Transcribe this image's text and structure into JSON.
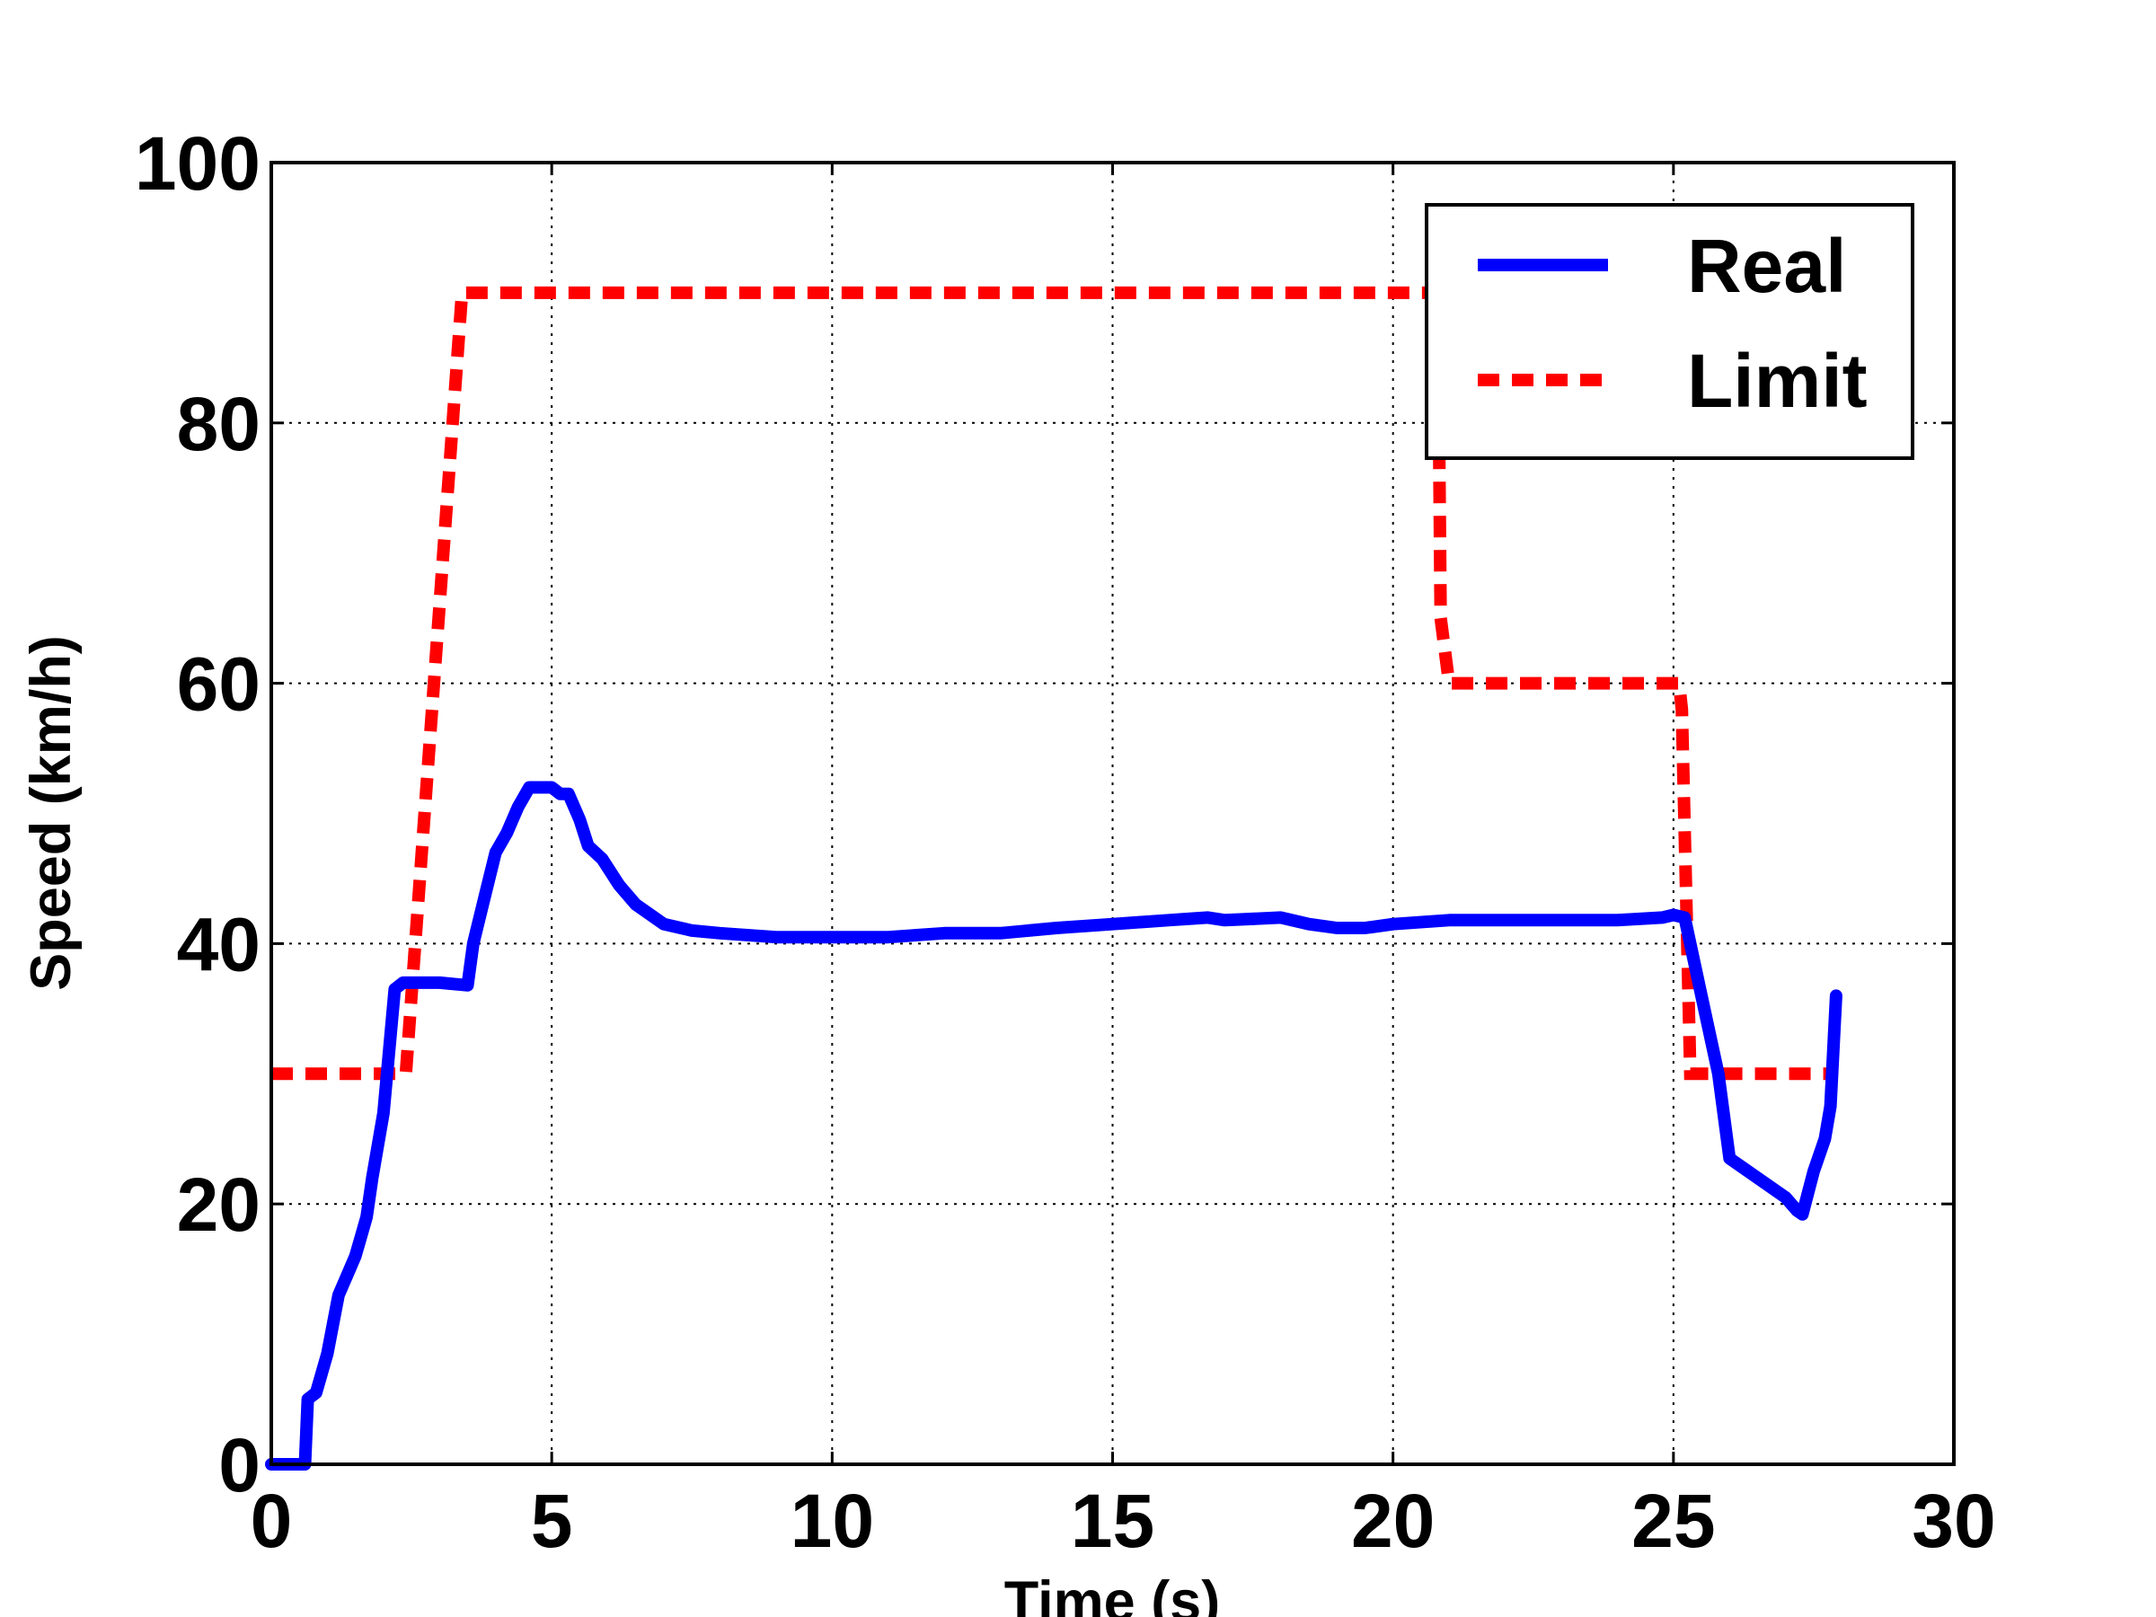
{
  "chart_data": {
    "type": "line",
    "title": "",
    "xlabel": "Time (s)",
    "ylabel": "Speed (km/h)",
    "xlim": [
      0,
      30
    ],
    "ylim": [
      0,
      100
    ],
    "xticks": [
      0,
      5,
      10,
      15,
      20,
      25,
      30
    ],
    "yticks": [
      0,
      20,
      40,
      60,
      80,
      100
    ],
    "xtick_labels": [
      "0",
      "5",
      "10",
      "15",
      "20",
      "25",
      "30"
    ],
    "ytick_labels": [
      "0",
      "20",
      "40",
      "60",
      "80",
      "100"
    ],
    "grid": true,
    "legend_position": "top-right",
    "series": [
      {
        "name": "Real",
        "color": "#0000ff",
        "style": "solid",
        "x": [
          0.0,
          0.6,
          0.65,
          0.8,
          1.0,
          1.2,
          1.4,
          1.5,
          1.6,
          1.7,
          1.8,
          2.0,
          2.2,
          2.35,
          2.45,
          2.6,
          3.0,
          3.5,
          3.6,
          3.8,
          4.0,
          4.2,
          4.4,
          4.6,
          4.8,
          5.0,
          5.15,
          5.3,
          5.5,
          5.65,
          5.9,
          6.2,
          6.5,
          7.0,
          7.5,
          8.0,
          9.0,
          10.0,
          11.0,
          12.0,
          13.0,
          14.0,
          15.0,
          16.0,
          16.7,
          17.0,
          18.0,
          18.5,
          19.0,
          19.5,
          20.0,
          21.0,
          22.0,
          23.0,
          24.0,
          24.8,
          25.0,
          25.2,
          25.5,
          25.8,
          26.0,
          27.0,
          27.2,
          27.3,
          27.5,
          27.7,
          27.8,
          27.9
        ],
        "y": [
          0,
          0,
          5,
          5.5,
          8.5,
          13,
          15,
          16,
          17.5,
          19,
          22,
          27,
          36.5,
          37,
          37,
          37,
          37,
          36.8,
          40,
          43.5,
          47,
          48.5,
          50.5,
          52,
          52,
          52,
          51.5,
          51.5,
          49.5,
          47.5,
          46.5,
          44.5,
          43,
          41.5,
          41,
          40.8,
          40.5,
          40.5,
          40.5,
          40.8,
          40.8,
          41.2,
          41.5,
          41.8,
          42,
          41.8,
          42,
          41.5,
          41.2,
          41.2,
          41.5,
          41.8,
          41.8,
          41.8,
          41.8,
          42,
          42.2,
          42,
          36,
          30,
          23.5,
          20.5,
          19.5,
          19.2,
          22.5,
          25,
          27.5,
          36
        ]
      },
      {
        "name": "Limit",
        "color": "#ff0000",
        "style": "dashed",
        "x": [
          0.0,
          2.4,
          3.4,
          20.8,
          20.85,
          21.0,
          25.1,
          25.15,
          25.3,
          27.8
        ],
        "y": [
          30,
          30,
          90,
          90,
          65,
          60,
          60,
          58,
          30,
          30
        ]
      }
    ]
  }
}
